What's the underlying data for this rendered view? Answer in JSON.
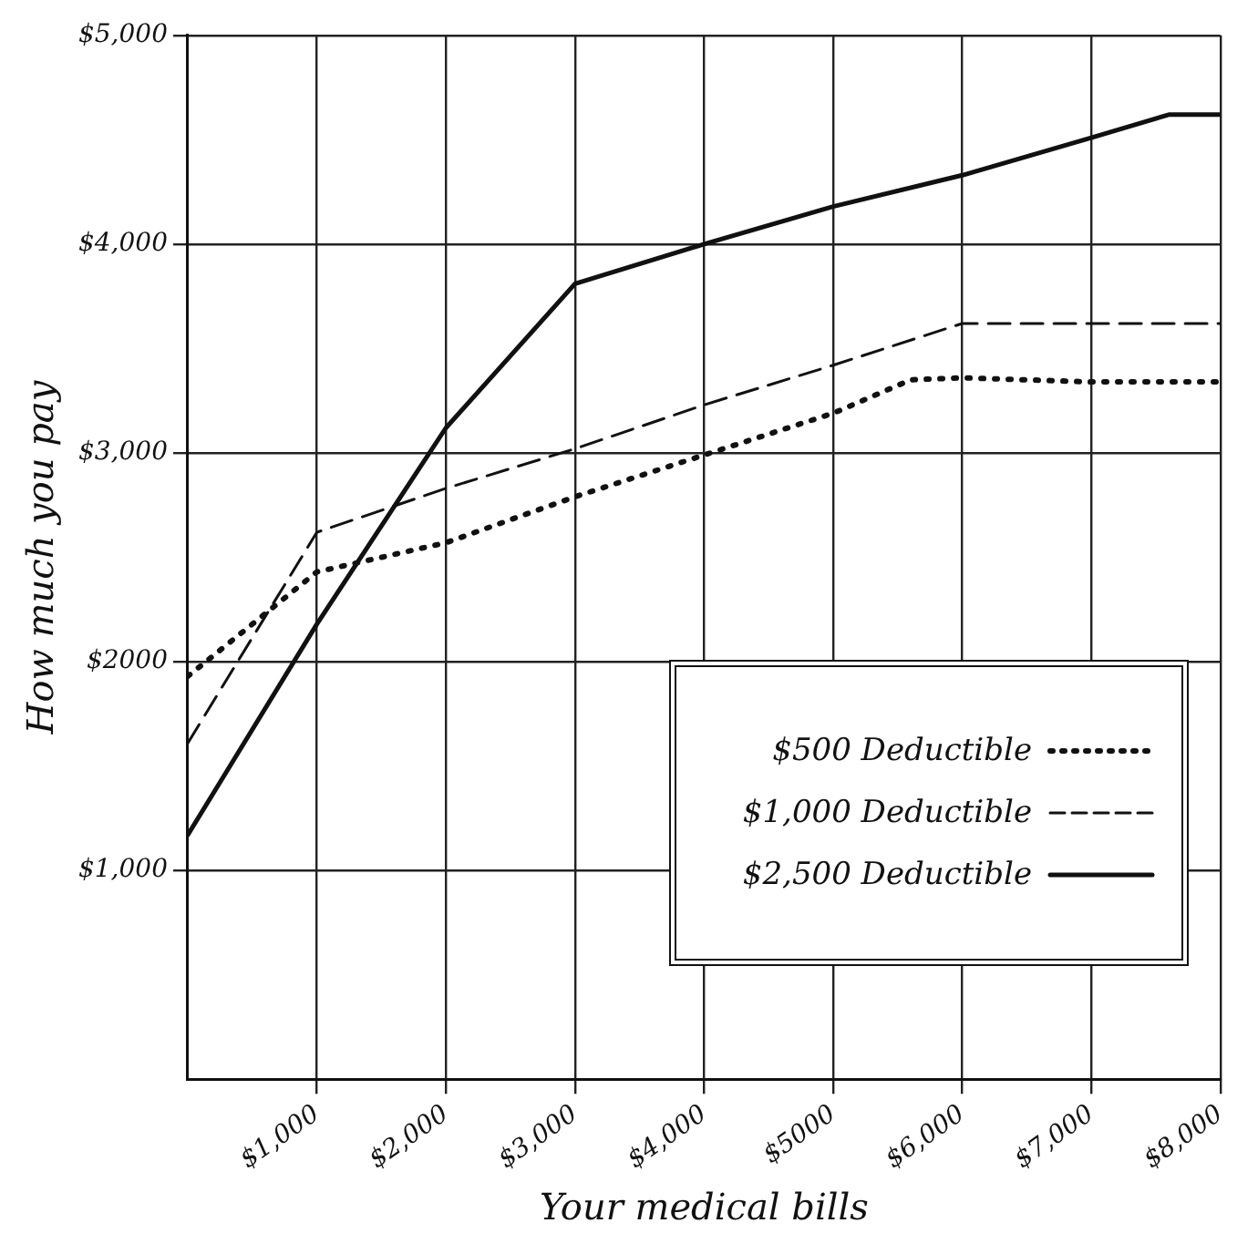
{
  "chart_data": {
    "type": "line",
    "xlabel": "Your medical bills",
    "ylabel": "How much you pay",
    "xlim": [
      0,
      8000
    ],
    "xticks": [
      {
        "value": 1000,
        "label": "$1,000"
      },
      {
        "value": 2000,
        "label": "$2,000"
      },
      {
        "value": 3000,
        "label": "$3,000"
      },
      {
        "value": 4000,
        "label": "$4,000"
      },
      {
        "value": 5000,
        "label": "$5000"
      },
      {
        "value": 6000,
        "label": "$6,000"
      },
      {
        "value": 7000,
        "label": "$7,000"
      },
      {
        "value": 8000,
        "label": "$8,000"
      }
    ],
    "ylim": [
      0,
      5000
    ],
    "yticks": [
      {
        "value": 1000,
        "label": "$1,000"
      },
      {
        "value": 2000,
        "label": "$2000"
      },
      {
        "value": 3000,
        "label": "$3,000"
      },
      {
        "value": 4000,
        "label": "$4,000"
      },
      {
        "value": 5000,
        "label": "$5,000"
      }
    ],
    "grid": true,
    "legend": "bottom right",
    "marker": "none",
    "series": [
      {
        "name": "$500 Deductible",
        "color": "#111111",
        "line_style": "dotted",
        "x": [
          0,
          1000,
          2000,
          3000,
          4000,
          5000,
          5600,
          6000,
          7000,
          8000
        ],
        "values": [
          1930,
          2430,
          2570,
          2790,
          2990,
          3190,
          3350,
          3360,
          3340,
          3340
        ]
      },
      {
        "name": "$1,000 Deductible",
        "color": "#111111",
        "line_style": "dashed",
        "x": [
          0,
          1000,
          2000,
          3000,
          4000,
          5000,
          6000,
          8000
        ],
        "values": [
          1610,
          2620,
          2830,
          3020,
          3230,
          3420,
          3620,
          3620
        ]
      },
      {
        "name": "$2,500 Deductible",
        "color": "#111111",
        "line_style": "solid",
        "x": [
          0,
          1000,
          2000,
          3000,
          4000,
          5000,
          6000,
          7000,
          7600,
          8000
        ],
        "values": [
          1170,
          2180,
          3120,
          3810,
          4000,
          4180,
          4330,
          4510,
          4620,
          4620
        ]
      }
    ]
  }
}
